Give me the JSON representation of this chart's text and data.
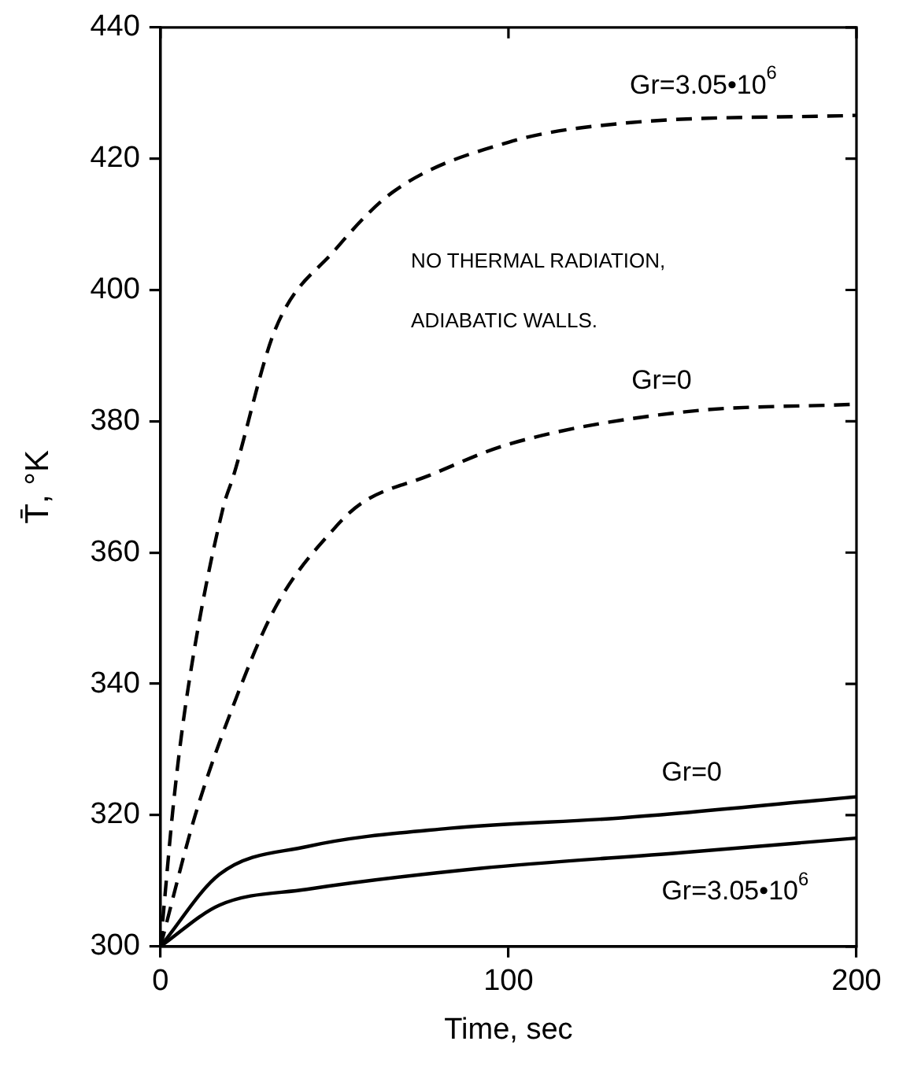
{
  "chart_data": {
    "type": "line",
    "xlabel": "Time, sec",
    "ylabel": "T̄, °K",
    "xlim": [
      0,
      200
    ],
    "xticks": [
      0,
      100,
      200
    ],
    "ylim": [
      300,
      440
    ],
    "yticks": [
      300,
      320,
      340,
      360,
      380,
      400,
      420,
      440
    ],
    "grid": false,
    "legend": false,
    "marker": "none",
    "series": [
      {
        "name": "Gr=3.05•10$^{6}$",
        "color": "#000000",
        "line_style": "dashed",
        "x": [
          0,
          4,
          8,
          18,
          21,
          33,
          50,
          67,
          100,
          133,
          200
        ],
        "values": [
          300,
          323,
          339.5,
          366.8,
          371.7,
          394,
          406,
          415,
          422.5,
          425.4,
          426.6
        ]
      },
      {
        "name": "Gr=0",
        "color": "#000000",
        "line_style": "dashed",
        "x": [
          0,
          10,
          20,
          33,
          50,
          58,
          77,
          100,
          150,
          200
        ],
        "values": [
          300,
          320,
          335.4,
          351.6,
          363.7,
          367.6,
          371.7,
          376.5,
          381.4,
          382.6
        ]
      },
      {
        "name": "Gr=0",
        "color": "#000000",
        "line_style": "solid",
        "x": [
          0,
          17,
          42,
          83,
          133,
          200
        ],
        "values": [
          300,
          311,
          315.2,
          318,
          319.6,
          322.8
        ]
      },
      {
        "name": "Gr=3.05•10$^{6}$",
        "color": "#000000",
        "line_style": "solid",
        "x": [
          0,
          17,
          42,
          92,
          150,
          200
        ],
        "values": [
          300,
          306.3,
          308.7,
          311.9,
          314.3,
          316.5
        ]
      }
    ],
    "annotations": [
      "NO THERMAL RADIATION,",
      "ADIABATIC WALLS."
    ]
  }
}
